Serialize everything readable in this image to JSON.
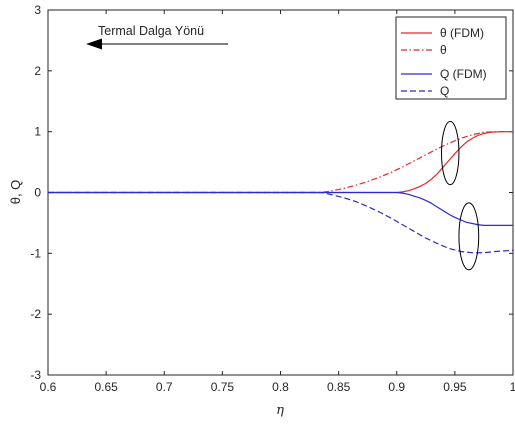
{
  "chart_data": {
    "type": "line",
    "xlabel": "η",
    "ylabel": "θ, Q",
    "xlim": [
      0.6,
      1.0
    ],
    "ylim": [
      -3,
      3
    ],
    "xticks": [
      "0.6",
      "0.65",
      "0.7",
      "0.75",
      "0.8",
      "0.85",
      "0.9",
      "0.95",
      "1"
    ],
    "yticks": [
      "3",
      "2",
      "1",
      "0",
      "-1",
      "-2",
      "-3"
    ],
    "grid": false,
    "legend_position": "top-right",
    "annotation": {
      "text": "Termal Dalga Yönü",
      "arrow_direction": "left"
    },
    "series": [
      {
        "name": "θ (FDM)",
        "color": "#e8262a",
        "style": "solid",
        "x": [
          0.6,
          0.7,
          0.8,
          0.9,
          0.905,
          0.91,
          0.915,
          0.92,
          0.925,
          0.93,
          0.935,
          0.94,
          0.945,
          0.95,
          0.955,
          0.96,
          0.965,
          0.97,
          0.975,
          0.98,
          0.99,
          1.0
        ],
        "y": [
          0,
          0,
          0,
          0,
          0.01,
          0.03,
          0.06,
          0.1,
          0.15,
          0.22,
          0.31,
          0.42,
          0.53,
          0.64,
          0.74,
          0.83,
          0.89,
          0.94,
          0.97,
          0.99,
          1.0,
          1.0
        ]
      },
      {
        "name": "θ",
        "color": "#e8262a",
        "style": "dashdot",
        "x": [
          0.6,
          0.7,
          0.8,
          0.835,
          0.845,
          0.855,
          0.865,
          0.875,
          0.885,
          0.895,
          0.905,
          0.915,
          0.925,
          0.935,
          0.945,
          0.955,
          0.965,
          0.975,
          0.985,
          1.0
        ],
        "y": [
          0,
          0,
          0,
          0.0,
          0.03,
          0.07,
          0.12,
          0.18,
          0.25,
          0.33,
          0.42,
          0.52,
          0.62,
          0.72,
          0.81,
          0.89,
          0.95,
          0.99,
          1.0,
          1.0
        ]
      },
      {
        "name": "Q (FDM)",
        "color": "#2b2bd0",
        "style": "solid",
        "x": [
          0.6,
          0.7,
          0.8,
          0.9,
          0.905,
          0.91,
          0.915,
          0.92,
          0.925,
          0.93,
          0.935,
          0.94,
          0.945,
          0.95,
          0.955,
          0.96,
          0.965,
          0.97,
          0.975,
          0.98,
          0.99,
          1.0
        ],
        "y": [
          0,
          0,
          0,
          0,
          -0.01,
          -0.03,
          -0.06,
          -0.09,
          -0.13,
          -0.18,
          -0.24,
          -0.3,
          -0.36,
          -0.41,
          -0.45,
          -0.49,
          -0.51,
          -0.53,
          -0.54,
          -0.54,
          -0.54,
          -0.54
        ]
      },
      {
        "name": "Q",
        "color": "#2b2bd0",
        "style": "dashed",
        "x": [
          0.6,
          0.7,
          0.8,
          0.835,
          0.845,
          0.855,
          0.865,
          0.875,
          0.885,
          0.895,
          0.905,
          0.915,
          0.925,
          0.935,
          0.945,
          0.955,
          0.965,
          0.975,
          0.985,
          1.0
        ],
        "y": [
          0,
          0,
          0,
          0.0,
          -0.04,
          -0.09,
          -0.15,
          -0.23,
          -0.32,
          -0.42,
          -0.53,
          -0.64,
          -0.75,
          -0.84,
          -0.92,
          -0.97,
          -0.99,
          -0.99,
          -0.97,
          -0.95
        ]
      }
    ],
    "ellipses": [
      {
        "cx": 0.946,
        "cy": 0.65,
        "rx": 0.0075,
        "ry": 0.52
      },
      {
        "cx": 0.962,
        "cy": -0.72,
        "rx": 0.0085,
        "ry": 0.55
      }
    ]
  }
}
